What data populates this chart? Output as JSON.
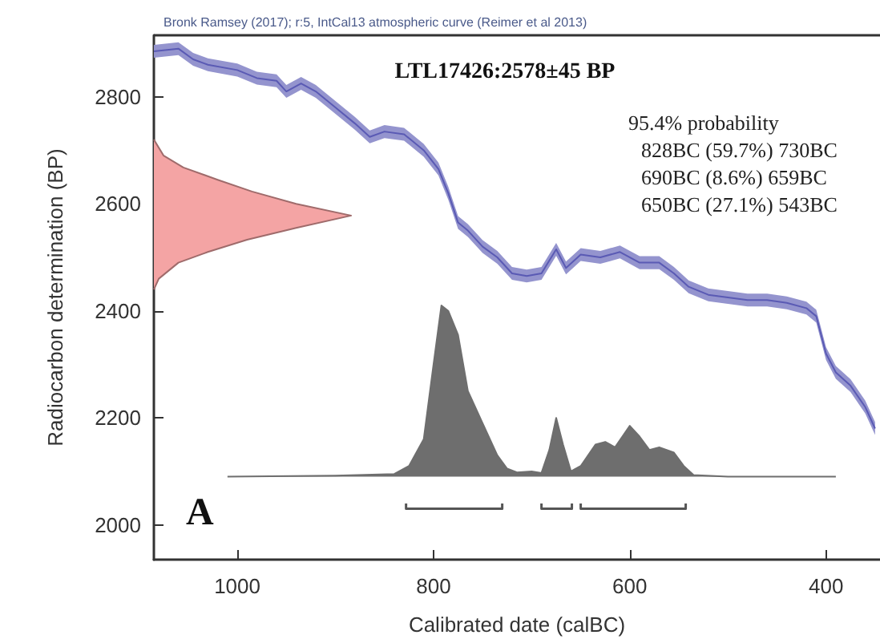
{
  "chart_data": {
    "type": "line",
    "title": "LTL17426:2578±45 BP",
    "subtitle": "Bronk Ramsey (2017); r:5, IntCal13 atmospheric curve (Reimer et al 2013)",
    "xlabel": "Calibrated date (calBC)",
    "ylabel": "Radiocarbon determination (BP)",
    "annotations": [
      "95.4% probability",
      "828BC (59.7%) 730BC",
      "690BC (8.6%) 659BC",
      "650BC (27.1%) 543BC",
      "A"
    ],
    "xlim": [
      1085,
      345
    ],
    "xticks": [
      1000,
      800,
      600,
      400
    ],
    "ylim": [
      1935,
      2915
    ],
    "yticks": [
      2000,
      2200,
      2400,
      2600,
      2800
    ],
    "grid": false,
    "series": [
      {
        "color": "#5a5ab4",
        "x": [
          1085,
          1060,
          1045,
          1030,
          1000,
          980,
          960,
          950,
          935,
          920,
          900,
          880,
          865,
          850,
          830,
          810,
          795,
          785,
          775,
          765,
          750,
          735,
          720,
          705,
          690,
          675,
          665,
          650,
          630,
          610,
          590,
          570,
          555,
          540,
          520,
          500,
          480,
          460,
          440,
          420,
          410,
          400,
          390,
          375,
          360,
          350
        ],
        "values": [
          2885,
          2890,
          2870,
          2860,
          2850,
          2835,
          2830,
          2810,
          2825,
          2810,
          2780,
          2750,
          2725,
          2735,
          2730,
          2700,
          2665,
          2620,
          2565,
          2550,
          2520,
          2500,
          2470,
          2465,
          2470,
          2515,
          2480,
          2505,
          2500,
          2510,
          2490,
          2490,
          2470,
          2445,
          2430,
          2425,
          2420,
          2420,
          2415,
          2405,
          2390,
          2320,
          2285,
          2260,
          2220,
          2180
        ],
        "lower": [
          2873,
          2878,
          2858,
          2848,
          2838,
          2823,
          2818,
          2798,
          2813,
          2798,
          2768,
          2738,
          2713,
          2723,
          2718,
          2688,
          2653,
          2608,
          2553,
          2538,
          2508,
          2488,
          2458,
          2453,
          2458,
          2503,
          2468,
          2493,
          2488,
          2498,
          2478,
          2478,
          2458,
          2433,
          2418,
          2413,
          2408,
          2408,
          2403,
          2393,
          2378,
          2308,
          2273,
          2248,
          2208,
          2168
        ],
        "upper": [
          2897,
          2902,
          2882,
          2872,
          2862,
          2847,
          2842,
          2822,
          2837,
          2822,
          2792,
          2762,
          2737,
          2747,
          2742,
          2712,
          2677,
          2632,
          2577,
          2562,
          2532,
          2512,
          2482,
          2477,
          2482,
          2527,
          2492,
          2517,
          2512,
          2522,
          2502,
          2502,
          2482,
          2457,
          2442,
          2437,
          2432,
          2432,
          2427,
          2417,
          2402,
          2332,
          2297,
          2272,
          2232,
          2192
        ]
      },
      {
        "type": "area",
        "color": "#f4a4a4",
        "x": [
          1085,
          1080,
          1060,
          1030,
          990,
          940,
          884,
          940,
          985,
          1020,
          1055,
          1075,
          1085
        ],
        "values": [
          2440,
          2460,
          2490,
          2510,
          2533,
          2555,
          2578,
          2600,
          2623,
          2645,
          2668,
          2690,
          2720
        ]
      },
      {
        "type": "area",
        "color": "#6e6e6e",
        "x": [
          1010,
          900,
          840,
          825,
          810,
          800,
          792,
          785,
          775,
          765,
          750,
          735,
          725,
          715,
          700,
          690,
          682,
          675,
          668,
          660,
          650,
          635,
          625,
          615,
          600,
          590,
          580,
          570,
          555,
          545,
          535,
          500,
          390
        ],
        "values": [
          2090,
          2092,
          2095,
          2110,
          2160,
          2300,
          2410,
          2400,
          2355,
          2250,
          2190,
          2130,
          2105,
          2098,
          2100,
          2097,
          2140,
          2200,
          2150,
          2100,
          2110,
          2150,
          2155,
          2145,
          2185,
          2165,
          2140,
          2145,
          2135,
          2110,
          2093,
          2090,
          2090
        ]
      },
      {
        "color": "#555555",
        "x": [
          828,
          828,
          730,
          730,
          710,
          690,
          690,
          659,
          659,
          655,
          650,
          650,
          543,
          543
        ],
        "values": [
          2040,
          2030,
          2030,
          2040,
          null,
          2040,
          2030,
          2030,
          2040,
          null,
          2040,
          2030,
          2030,
          2040
        ]
      }
    ]
  }
}
